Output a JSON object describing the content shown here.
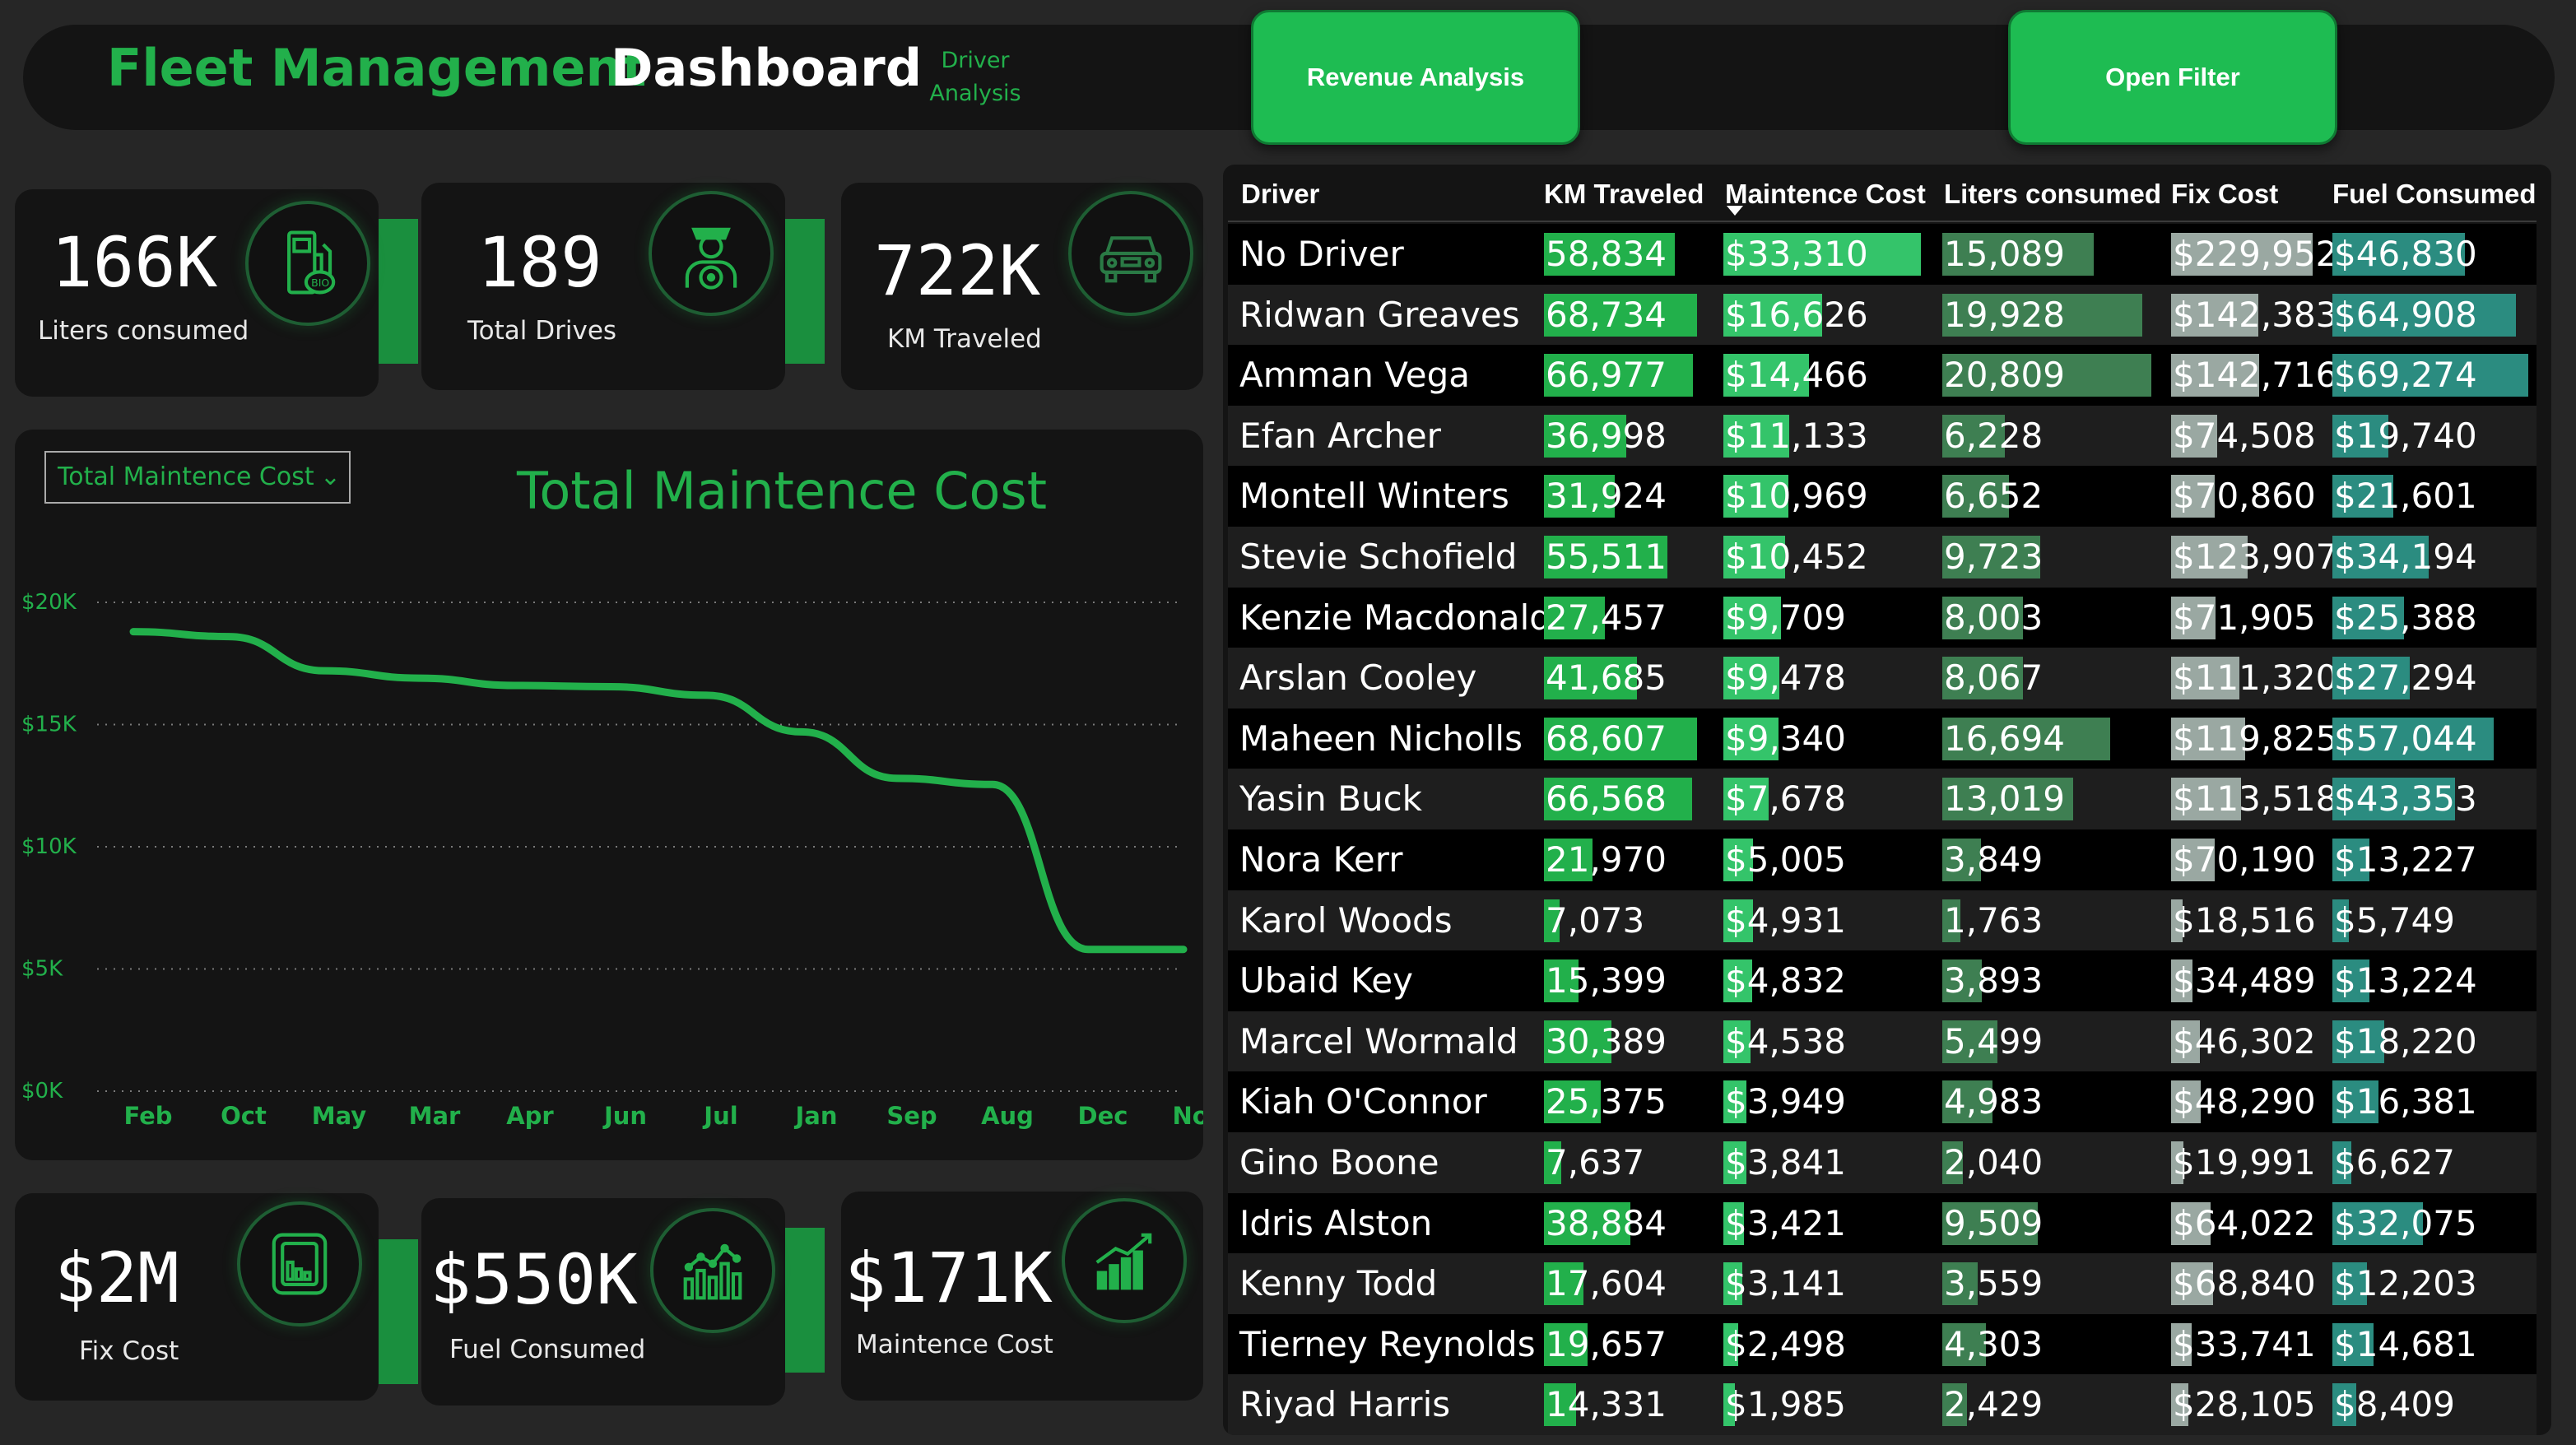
{
  "header": {
    "brand": "Fleet Management",
    "subtitle": "Dashboard",
    "driver_link_line1": "Driver",
    "driver_link_line2": "Analysis",
    "revenue_button": "Revenue Analysis",
    "filter_button": "Open Filter"
  },
  "kpis_top": [
    {
      "value": "166K",
      "label": "Liters consumed",
      "icon": "fuel-pump-icon"
    },
    {
      "value": "189",
      "label": "Total Drives",
      "icon": "driver-icon"
    },
    {
      "value": "722K",
      "label": "KM Traveled",
      "icon": "car-icon"
    }
  ],
  "kpis_bottom": [
    {
      "value": "$2M",
      "label": "Fix Cost",
      "icon": "document-chart-icon"
    },
    {
      "value": "$550K",
      "label": "Fuel Consumed",
      "icon": "bar-chart-icon"
    },
    {
      "value": "$171K",
      "label": "Maintence Cost",
      "icon": "growth-chart-icon"
    }
  ],
  "chart": {
    "selector_value": "Total Maintence Cost"
  },
  "chart_data": {
    "type": "line",
    "title": "Total Maintence Cost",
    "categories": [
      "Feb",
      "Oct",
      "May",
      "Mar",
      "Apr",
      "Jun",
      "Jul",
      "Jan",
      "Sep",
      "Aug",
      "Dec",
      "Nov"
    ],
    "values": [
      18800,
      18600,
      17200,
      16900,
      16600,
      16550,
      16200,
      14700,
      12800,
      12550,
      5800,
      5800
    ],
    "ylim": [
      0,
      20000
    ],
    "yticks": [
      0,
      5000,
      10000,
      15000,
      20000
    ],
    "ytick_labels": [
      "$0K",
      "$5K",
      "$10K",
      "$15K",
      "$20K"
    ],
    "grid": true,
    "line_color": "#22b04b",
    "xlabel": "",
    "ylabel": ""
  },
  "table": {
    "columns": [
      "Driver",
      "KM Traveled",
      "Maintence Cost",
      "Liters consumed",
      "Fix Cost",
      "Fuel Consumed"
    ],
    "max": [
      68734,
      33310,
      20809,
      229952,
      69274
    ],
    "colors": [
      "#22b04b",
      "#34c46a",
      "#3e7f52",
      "#9aa8a2",
      "#2b8c80"
    ],
    "rows": [
      {
        "driver": "No Driver",
        "km": 58834,
        "km_label": "58,834",
        "maint": 33310,
        "maint_label": "$33,310",
        "liters": 15089,
        "liters_label": "15,089",
        "fix": 229952,
        "fix_label": "$229,952",
        "fuel": 46830,
        "fuel_label": "$46,830"
      },
      {
        "driver": "Ridwan Greaves",
        "km": 68734,
        "km_label": "68,734",
        "maint": 16626,
        "maint_label": "$16,626",
        "liters": 19928,
        "liters_label": "19,928",
        "fix": 142383,
        "fix_label": "$142,383",
        "fuel": 64908,
        "fuel_label": "$64,908"
      },
      {
        "driver": "Amman Vega",
        "km": 66977,
        "km_label": "66,977",
        "maint": 14466,
        "maint_label": "$14,466",
        "liters": 20809,
        "liters_label": "20,809",
        "fix": 142716,
        "fix_label": "$142,716",
        "fuel": 69274,
        "fuel_label": "$69,274"
      },
      {
        "driver": "Efan Archer",
        "km": 36998,
        "km_label": "36,998",
        "maint": 11133,
        "maint_label": "$11,133",
        "liters": 6228,
        "liters_label": "6,228",
        "fix": 74508,
        "fix_label": "$74,508",
        "fuel": 19740,
        "fuel_label": "$19,740"
      },
      {
        "driver": "Montell Winters",
        "km": 31924,
        "km_label": "31,924",
        "maint": 10969,
        "maint_label": "$10,969",
        "liters": 6652,
        "liters_label": "6,652",
        "fix": 70860,
        "fix_label": "$70,860",
        "fuel": 21601,
        "fuel_label": "$21,601"
      },
      {
        "driver": "Stevie Schofield",
        "km": 55511,
        "km_label": "55,511",
        "maint": 10452,
        "maint_label": "$10,452",
        "liters": 9723,
        "liters_label": "9,723",
        "fix": 123907,
        "fix_label": "$123,907",
        "fuel": 34194,
        "fuel_label": "$34,194"
      },
      {
        "driver": "Kenzie Macdonald",
        "km": 27457,
        "km_label": "27,457",
        "maint": 9709,
        "maint_label": "$9,709",
        "liters": 8003,
        "liters_label": "8,003",
        "fix": 71905,
        "fix_label": "$71,905",
        "fuel": 25388,
        "fuel_label": "$25,388"
      },
      {
        "driver": "Arslan Cooley",
        "km": 41685,
        "km_label": "41,685",
        "maint": 9478,
        "maint_label": "$9,478",
        "liters": 8067,
        "liters_label": "8,067",
        "fix": 111320,
        "fix_label": "$111,320",
        "fuel": 27294,
        "fuel_label": "$27,294"
      },
      {
        "driver": "Maheen Nicholls",
        "km": 68607,
        "km_label": "68,607",
        "maint": 9340,
        "maint_label": "$9,340",
        "liters": 16694,
        "liters_label": "16,694",
        "fix": 119825,
        "fix_label": "$119,825",
        "fuel": 57044,
        "fuel_label": "$57,044"
      },
      {
        "driver": "Yasin Buck",
        "km": 66568,
        "km_label": "66,568",
        "maint": 7678,
        "maint_label": "$7,678",
        "liters": 13019,
        "liters_label": "13,019",
        "fix": 113518,
        "fix_label": "$113,518",
        "fuel": 43353,
        "fuel_label": "$43,353"
      },
      {
        "driver": "Nora Kerr",
        "km": 21970,
        "km_label": "21,970",
        "maint": 5005,
        "maint_label": "$5,005",
        "liters": 3849,
        "liters_label": "3,849",
        "fix": 70190,
        "fix_label": "$70,190",
        "fuel": 13227,
        "fuel_label": "$13,227"
      },
      {
        "driver": "Karol Woods",
        "km": 7073,
        "km_label": "7,073",
        "maint": 4931,
        "maint_label": "$4,931",
        "liters": 1763,
        "liters_label": "1,763",
        "fix": 18516,
        "fix_label": "$18,516",
        "fuel": 5749,
        "fuel_label": "$5,749"
      },
      {
        "driver": "Ubaid Key",
        "km": 15399,
        "km_label": "15,399",
        "maint": 4832,
        "maint_label": "$4,832",
        "liters": 3893,
        "liters_label": "3,893",
        "fix": 34489,
        "fix_label": "$34,489",
        "fuel": 13224,
        "fuel_label": "$13,224"
      },
      {
        "driver": "Marcel Wormald",
        "km": 30389,
        "km_label": "30,389",
        "maint": 4538,
        "maint_label": "$4,538",
        "liters": 5499,
        "liters_label": "5,499",
        "fix": 46302,
        "fix_label": "$46,302",
        "fuel": 18220,
        "fuel_label": "$18,220"
      },
      {
        "driver": "Kiah O'Connor",
        "km": 25375,
        "km_label": "25,375",
        "maint": 3949,
        "maint_label": "$3,949",
        "liters": 4983,
        "liters_label": "4,983",
        "fix": 48290,
        "fix_label": "$48,290",
        "fuel": 16381,
        "fuel_label": "$16,381"
      },
      {
        "driver": "Gino Boone",
        "km": 7637,
        "km_label": "7,637",
        "maint": 3841,
        "maint_label": "$3,841",
        "liters": 2040,
        "liters_label": "2,040",
        "fix": 19991,
        "fix_label": "$19,991",
        "fuel": 6627,
        "fuel_label": "$6,627"
      },
      {
        "driver": "Idris Alston",
        "km": 38884,
        "km_label": "38,884",
        "maint": 3421,
        "maint_label": "$3,421",
        "liters": 9509,
        "liters_label": "9,509",
        "fix": 64022,
        "fix_label": "$64,022",
        "fuel": 32075,
        "fuel_label": "$32,075"
      },
      {
        "driver": "Kenny Todd",
        "km": 17604,
        "km_label": "17,604",
        "maint": 3141,
        "maint_label": "$3,141",
        "liters": 3559,
        "liters_label": "3,559",
        "fix": 68840,
        "fix_label": "$68,840",
        "fuel": 12203,
        "fuel_label": "$12,203"
      },
      {
        "driver": "Tierney Reynolds",
        "km": 19657,
        "km_label": "19,657",
        "maint": 2498,
        "maint_label": "$2,498",
        "liters": 4303,
        "liters_label": "4,303",
        "fix": 33741,
        "fix_label": "$33,741",
        "fuel": 14681,
        "fuel_label": "$14,681"
      },
      {
        "driver": "Riyad Harris",
        "km": 14331,
        "km_label": "14,331",
        "maint": 1985,
        "maint_label": "$1,985",
        "liters": 2429,
        "liters_label": "2,429",
        "fix": 28105,
        "fix_label": "$28,105",
        "fuel": 8409,
        "fuel_label": "$8,409"
      }
    ]
  }
}
